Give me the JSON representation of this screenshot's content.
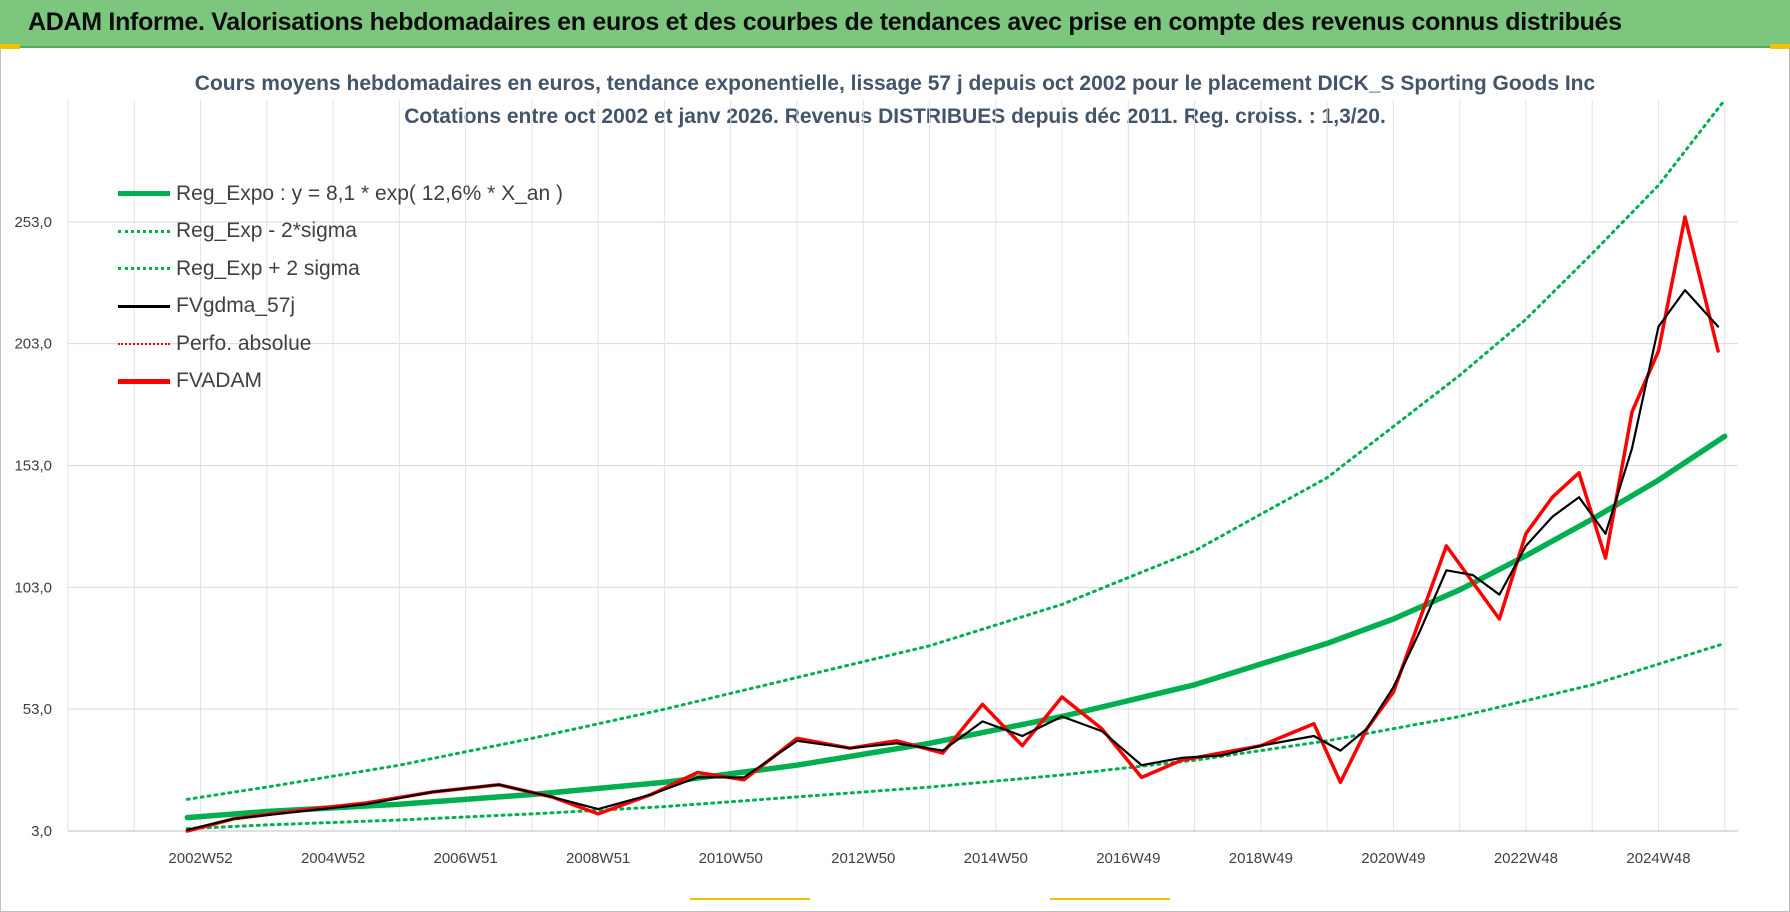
{
  "banner": {
    "title": "ADAM Informe. Valorisations hebdomadaires en euros et des courbes de tendances avec prise en compte des revenus connus distribués"
  },
  "colors": {
    "banner_bg": "#7dc67d",
    "reg_green": "#00b050",
    "gdma_black": "#000000",
    "fvadam_red": "#ff0000",
    "accent_yellow": "#f2c200",
    "title_text": "#44546a"
  },
  "chart_data": {
    "type": "line",
    "title_line1": "Cours moyens hebdomadaires en euros, tendance exponentielle, lissage 57 j depuis oct 2002 pour le placement DICK_S Sporting Goods Inc",
    "title_line2": "Cotations entre oct 2002 et janv 2026. Revenus DISTRIBUES depuis déc 2011. Reg. croiss. : 1,3/20.",
    "xlabel": "",
    "ylabel": "",
    "xlim": [
      2001.0,
      2026.2
    ],
    "ylim": [
      3.0,
      303.0
    ],
    "y_ticks": [
      3.0,
      53.0,
      103.0,
      153.0,
      203.0,
      253.0
    ],
    "y_tick_labels": [
      "3,0",
      "53,0",
      "103,0",
      "153,0",
      "203,0",
      "253,0"
    ],
    "x_tick_labels": [
      "2002W52",
      "2004W52",
      "2006W51",
      "2008W51",
      "2010W50",
      "2012W50",
      "2014W50",
      "2016W49",
      "2018W49",
      "2020W49",
      "2022W48",
      "2024W48"
    ],
    "x_tick_positions": [
      2003,
      2005,
      2007,
      2009,
      2011,
      2013,
      2015,
      2017,
      2019,
      2021,
      2023,
      2025
    ],
    "grid": true,
    "legend_position": "top-left",
    "legend": [
      {
        "label": "Reg_Expo : y = 8,1 * exp( 12,6% *  X_an )",
        "color": "#00b050",
        "style": "solid-thick"
      },
      {
        "label": "Reg_Exp - 2*sigma",
        "color": "#00b050",
        "style": "dotted"
      },
      {
        "label": "Reg_Exp + 2 sigma",
        "color": "#00b050",
        "style": "dotted"
      },
      {
        "label": "FVgdma_57j",
        "color": "#000000",
        "style": "solid"
      },
      {
        "label": "Perfo. absolue",
        "color": "#ff0000",
        "style": "dotted"
      },
      {
        "label": "FVADAM",
        "color": "#ff0000",
        "style": "solid-thick"
      }
    ],
    "series": [
      {
        "name": "Reg_Expo : y = 8,1 * exp( 12,6% *  X_an )",
        "x": [
          2002.8,
          2004,
          2006,
          2008,
          2010,
          2012,
          2014,
          2016,
          2018,
          2020,
          2021,
          2022,
          2023,
          2024,
          2025,
          2026
        ],
        "values": [
          8.5,
          11.0,
          14.0,
          18.0,
          23.0,
          30.0,
          39.0,
          50.0,
          63.0,
          80.0,
          90.0,
          102.0,
          116.0,
          131.0,
          147.0,
          165.0
        ]
      },
      {
        "name": "Reg_Exp - 2*sigma",
        "x": [
          2002.8,
          2004,
          2006,
          2008,
          2010,
          2012,
          2014,
          2016,
          2018,
          2020,
          2022,
          2024,
          2026
        ],
        "values": [
          4.0,
          5.5,
          7.5,
          10.0,
          13.0,
          17.0,
          21.0,
          26.0,
          32.0,
          40.0,
          50.0,
          63.0,
          80.0
        ]
      },
      {
        "name": "Reg_Exp + 2 sigma",
        "x": [
          2002.8,
          2004,
          2006,
          2008,
          2010,
          2012,
          2014,
          2016,
          2018,
          2020,
          2022,
          2023,
          2024,
          2025,
          2026
        ],
        "values": [
          16.0,
          21.0,
          30.0,
          41.0,
          53.0,
          66.0,
          79.0,
          96.0,
          118.0,
          148.0,
          190.0,
          213.0,
          240.0,
          268.0,
          303.0
        ]
      },
      {
        "name": "FVgdma_57j",
        "x": [
          2002.8,
          2003.5,
          2004.5,
          2005.5,
          2006.5,
          2007.5,
          2008.3,
          2009.0,
          2009.8,
          2010.5,
          2011.2,
          2012.0,
          2012.8,
          2013.5,
          2014.2,
          2014.8,
          2015.4,
          2016.0,
          2016.6,
          2017.2,
          2017.8,
          2018.4,
          2019.0,
          2019.8,
          2020.2,
          2020.6,
          2021.0,
          2021.4,
          2021.8,
          2022.2,
          2022.6,
          2023.0,
          2023.4,
          2023.8,
          2024.2,
          2024.6,
          2025.0,
          2025.4,
          2025.9
        ],
        "values": [
          3.5,
          8.0,
          11.0,
          14.0,
          19.0,
          22.0,
          17.0,
          12.0,
          18.0,
          25.0,
          25.0,
          40.0,
          37.0,
          39.0,
          36.0,
          48.0,
          42.0,
          50.0,
          44.0,
          30.0,
          33.0,
          34.0,
          38.0,
          42.0,
          36.0,
          45.0,
          62.0,
          85.0,
          110.0,
          108.0,
          100.0,
          120.0,
          132.0,
          140.0,
          125.0,
          160.0,
          210.0,
          225.0,
          210.0
        ]
      },
      {
        "name": "FVADAM",
        "x": [
          2002.8,
          2003.5,
          2004.5,
          2005.5,
          2006.5,
          2007.5,
          2008.3,
          2009.0,
          2009.8,
          2010.5,
          2011.2,
          2012.0,
          2012.8,
          2013.5,
          2014.2,
          2014.8,
          2015.4,
          2016.0,
          2016.6,
          2017.2,
          2017.8,
          2018.4,
          2019.0,
          2019.8,
          2020.2,
          2020.6,
          2021.0,
          2021.4,
          2021.8,
          2022.2,
          2022.6,
          2023.0,
          2023.4,
          2023.8,
          2024.2,
          2024.6,
          2025.0,
          2025.4,
          2025.9
        ],
        "values": [
          3.0,
          8.0,
          11.5,
          14.5,
          19.0,
          22.0,
          17.0,
          10.0,
          18.0,
          27.0,
          24.0,
          41.0,
          37.0,
          40.0,
          35.0,
          55.0,
          38.0,
          58.0,
          45.0,
          25.0,
          32.0,
          35.0,
          38.0,
          47.0,
          23.0,
          45.0,
          60.0,
          90.0,
          120.0,
          105.0,
          90.0,
          125.0,
          140.0,
          150.0,
          115.0,
          175.0,
          200.0,
          255.0,
          200.0
        ]
      }
    ]
  }
}
